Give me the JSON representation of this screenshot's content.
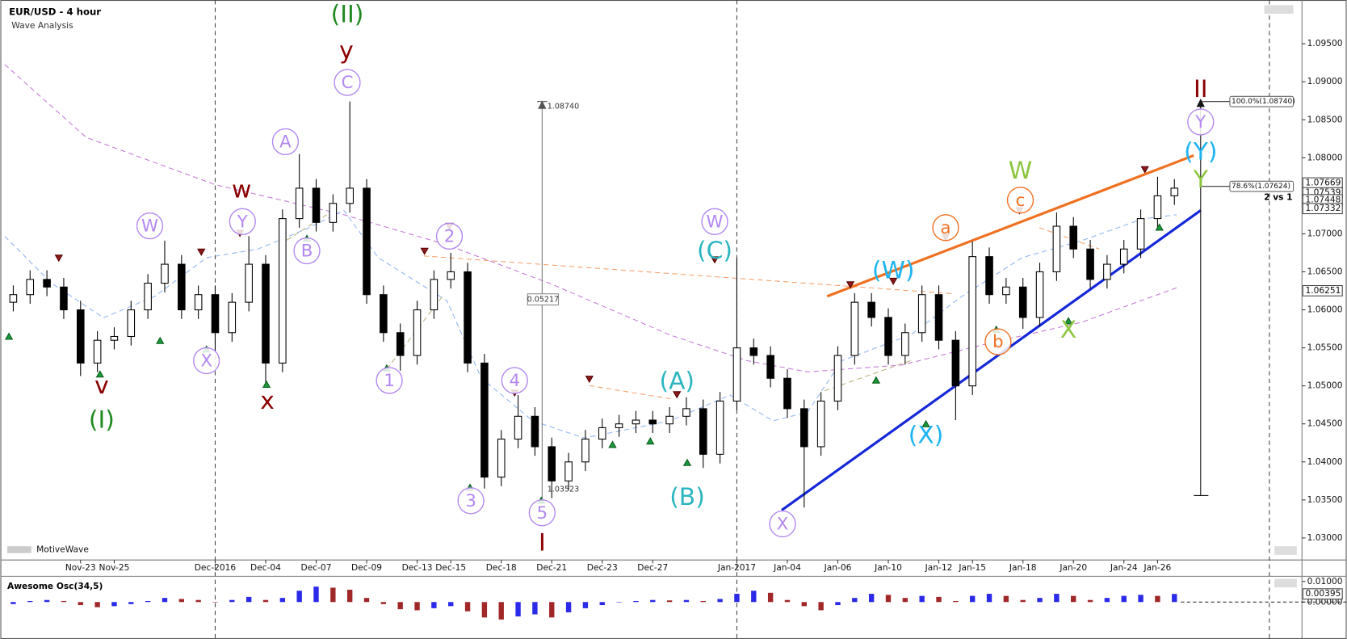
{
  "chart_data": {
    "type": "candlestick",
    "title": "EUR/USD - 4 hour",
    "subtitle": "Wave Analysis",
    "branding": "MotiveWave",
    "categories": [
      null,
      null,
      null,
      null,
      "Nov-23",
      null,
      "Nov-25",
      null,
      null,
      null,
      null,
      null,
      "Dec-2016",
      null,
      null,
      "Dec-04",
      null,
      null,
      "Dec-07",
      null,
      null,
      "Dec-09",
      null,
      null,
      "Dec-13",
      null,
      "Dec-15",
      null,
      null,
      "Dec-18",
      null,
      null,
      "Dec-21",
      null,
      null,
      "Dec-23",
      null,
      null,
      "Dec-27",
      null,
      null,
      null,
      null,
      "Jan-2017",
      null,
      null,
      "Jan-04",
      null,
      null,
      "Jan-06",
      null,
      null,
      "Jan-10",
      null,
      null,
      "Jan-12",
      null,
      "Jan-15",
      null,
      null,
      "Jan-18",
      null,
      null,
      "Jan-20",
      null,
      null,
      "Jan-24",
      null,
      "Jan-26",
      null
    ],
    "month_separators": [
      "Dec-2016",
      "Jan-2017"
    ],
    "open": [
      1.061,
      1.062,
      1.064,
      1.063,
      1.06,
      1.053,
      1.056,
      1.0565,
      1.06,
      1.0635,
      1.066,
      1.06,
      1.062,
      1.057,
      1.061,
      1.066,
      1.053,
      1.072,
      1.076,
      1.0715,
      1.074,
      1.076,
      1.062,
      1.057,
      1.054,
      1.06,
      1.064,
      1.065,
      1.053,
      1.038,
      1.043,
      1.046,
      1.042,
      1.0375,
      1.04,
      1.043,
      1.0445,
      1.045,
      1.0455,
      1.045,
      1.046,
      1.047,
      1.041,
      1.048,
      1.055,
      1.054,
      1.051,
      1.047,
      1.042,
      1.048,
      1.054,
      1.061,
      1.059,
      1.054,
      1.057,
      1.062,
      1.056,
      1.05,
      1.067,
      1.062,
      1.063,
      1.059,
      1.065,
      1.071,
      1.068,
      1.064,
      1.066,
      1.068,
      1.072,
      1.075
    ],
    "high": [
      1.0632,
      1.0652,
      1.0652,
      1.0642,
      1.0612,
      1.0572,
      1.0577,
      1.0612,
      1.0647,
      1.0691,
      1.0672,
      1.0632,
      1.0632,
      1.0622,
      1.0697,
      1.0672,
      1.0732,
      1.0805,
      1.0772,
      1.0752,
      1.0874,
      1.0772,
      1.0632,
      1.0582,
      1.0612,
      1.0652,
      1.0675,
      1.0662,
      1.0542,
      1.0442,
      1.0488,
      1.0472,
      1.0432,
      1.0412,
      1.0442,
      1.0457,
      1.0462,
      1.0467,
      1.0467,
      1.0472,
      1.0485,
      1.0482,
      1.0492,
      1.0668,
      1.0562,
      1.0552,
      1.0522,
      1.0482,
      1.0492,
      1.0552,
      1.0622,
      1.0622,
      1.0602,
      1.0582,
      1.0632,
      1.0632,
      1.0572,
      1.069,
      1.0682,
      1.0642,
      1.0642,
      1.0662,
      1.0728,
      1.0722,
      1.0692,
      1.0672,
      1.0692,
      1.0732,
      1.0775,
      1.0772
    ],
    "low": [
      1.0598,
      1.0608,
      1.0618,
      1.0588,
      1.0513,
      1.0518,
      1.0548,
      1.0553,
      1.0588,
      1.0623,
      1.0588,
      1.0588,
      1.0545,
      1.0558,
      1.0598,
      1.05,
      1.0518,
      1.0708,
      1.0703,
      1.0703,
      1.0728,
      1.0608,
      1.0558,
      1.052,
      1.0528,
      1.0588,
      1.0628,
      1.0518,
      1.0365,
      1.0368,
      1.0418,
      1.0408,
      1.03523,
      1.0363,
      1.0388,
      1.0418,
      1.0433,
      1.0438,
      1.0438,
      1.0438,
      1.0448,
      1.0392,
      1.0398,
      1.0468,
      1.0528,
      1.0498,
      1.0458,
      1.034,
      1.0408,
      1.0468,
      1.0528,
      1.0578,
      1.0528,
      1.0528,
      1.0558,
      1.0548,
      1.0455,
      1.0488,
      1.0608,
      1.0608,
      1.0575,
      1.0578,
      1.0638,
      1.0668,
      1.0628,
      1.0628,
      1.0648,
      1.0668,
      1.0708,
      1.0738
    ],
    "close": [
      1.062,
      1.064,
      1.063,
      1.06,
      1.053,
      1.056,
      1.0565,
      1.06,
      1.0635,
      1.066,
      1.06,
      1.062,
      1.057,
      1.061,
      1.066,
      1.053,
      1.072,
      1.076,
      1.0715,
      1.074,
      1.076,
      1.062,
      1.057,
      1.054,
      1.06,
      1.064,
      1.065,
      1.053,
      1.038,
      1.043,
      1.046,
      1.042,
      1.0375,
      1.04,
      1.043,
      1.0445,
      1.045,
      1.0455,
      1.045,
      1.046,
      1.047,
      1.041,
      1.048,
      1.055,
      1.054,
      1.051,
      1.047,
      1.042,
      1.048,
      1.054,
      1.061,
      1.059,
      1.054,
      1.057,
      1.062,
      1.056,
      1.05,
      1.067,
      1.062,
      1.063,
      1.059,
      1.065,
      1.071,
      1.068,
      1.064,
      1.066,
      1.068,
      1.072,
      1.075,
      1.076
    ],
    "up_color": "#ffffff",
    "down_color": "#000000",
    "ylim": [
      1.0271,
      1.1003
    ],
    "yticks": [
      {
        "value": 1.03,
        "label": "1.03000"
      },
      {
        "value": 1.035,
        "label": "1.03500"
      },
      {
        "value": 1.04,
        "label": "1.04000"
      },
      {
        "value": 1.045,
        "label": "1.04500"
      },
      {
        "value": 1.05,
        "label": "1.05000"
      },
      {
        "value": 1.055,
        "label": "1.05500"
      },
      {
        "value": 1.06,
        "label": "1.06000"
      },
      {
        "value": 1.065,
        "label": "1.06500"
      },
      {
        "value": 1.07,
        "label": "1.07000"
      },
      {
        "value": 1.075,
        "label": "1.07500"
      },
      {
        "value": 1.08,
        "label": "1.08000"
      },
      {
        "value": 1.085,
        "label": "1.08500"
      },
      {
        "value": 1.09,
        "label": "1.09000"
      },
      {
        "value": 1.095,
        "label": "1.09500"
      }
    ],
    "price_markers": [
      {
        "value": 1.07669,
        "label": "1.07669"
      },
      {
        "value": 1.07539,
        "label": "1.07539"
      },
      {
        "value": 1.07448,
        "label": "1.07448"
      },
      {
        "value": 1.07332,
        "label": "1.07332"
      },
      {
        "value": 1.06251,
        "label": "1.06251"
      }
    ],
    "fib_levels": [
      {
        "value": 1.0874,
        "label": "100.0%(1.08740)"
      },
      {
        "value": 1.07624,
        "label": "78.6%(1.07624)"
      }
    ],
    "ratio_note": "2 vs 1",
    "measure": {
      "top": {
        "value": 1.0874,
        "label": "1.08740"
      },
      "bottom": {
        "value": 1.03523,
        "label": "1.03523"
      },
      "range": 0.05217
    },
    "annotations": [
      {
        "text": "(II)",
        "color": "#1f8a1f",
        "circled": false
      },
      {
        "text": "y",
        "color": "#8b0000",
        "circled": false
      },
      {
        "text": "C",
        "color": "#b388f0",
        "circled": true
      },
      {
        "text": "A",
        "color": "#b388f0",
        "circled": true
      },
      {
        "text": "w",
        "color": "#8b0000",
        "circled": false
      },
      {
        "text": "W",
        "color": "#b388f0",
        "circled": true
      },
      {
        "text": "Y",
        "color": "#b388f0",
        "circled": true
      },
      {
        "text": "B",
        "color": "#b388f0",
        "circled": true
      },
      {
        "text": "X",
        "color": "#b388f0",
        "circled": true
      },
      {
        "text": "v",
        "color": "#8b0000",
        "circled": false
      },
      {
        "text": "(I)",
        "color": "#1f8a1f",
        "circled": false
      },
      {
        "text": "x",
        "color": "#8b0000",
        "circled": false
      },
      {
        "text": "2",
        "color": "#b388f0",
        "circled": true
      },
      {
        "text": "1",
        "color": "#b388f0",
        "circled": true
      },
      {
        "text": "4",
        "color": "#b388f0",
        "circled": true
      },
      {
        "text": "3",
        "color": "#b388f0",
        "circled": true
      },
      {
        "text": "5",
        "color": "#b388f0",
        "circled": true
      },
      {
        "text": "I",
        "color": "#8b0000",
        "circled": false
      },
      {
        "text": "W",
        "color": "#b388f0",
        "circled": true
      },
      {
        "text": "(C)",
        "color": "#2ab5c0",
        "circled": false
      },
      {
        "text": "(A)",
        "color": "#2ab5c0",
        "circled": false
      },
      {
        "text": "(B)",
        "color": "#2ab5c0",
        "circled": false
      },
      {
        "text": "X",
        "color": "#b388f0",
        "circled": true
      },
      {
        "text": "(W)",
        "color": "#1eb4f0",
        "circled": false
      },
      {
        "text": "(X)",
        "color": "#1eb4f0",
        "circled": false
      },
      {
        "text": "a",
        "color": "#f07020",
        "circled": true
      },
      {
        "text": "b",
        "color": "#f07020",
        "circled": true
      },
      {
        "text": "c",
        "color": "#f07020",
        "circled": true
      },
      {
        "text": "W",
        "color": "#8cc63f",
        "circled": false
      },
      {
        "text": "X",
        "color": "#8cc63f",
        "circled": false
      },
      {
        "text": "II",
        "color": "#8b0000",
        "circled": false
      },
      {
        "text": "Y",
        "color": "#b388f0",
        "circled": true
      },
      {
        "text": "(Y)",
        "color": "#1eb4f0",
        "circled": false
      },
      {
        "text": "Y",
        "color": "#8cc63f",
        "circled": false
      }
    ],
    "oscillator": {
      "title": "Awesome Osc(34,5)",
      "up_color": "#2a2ae8",
      "down_color": "#a02828",
      "ylim": [
        -0.0163,
        0.0121
      ],
      "yticks": [
        {
          "value": 0.01,
          "label": "0.01000"
        },
        {
          "value": 0,
          "label": "0.00000"
        }
      ],
      "values": [
        -0.001,
        0.0005,
        0.001,
        0.0005,
        -0.0015,
        -0.0025,
        -0.002,
        -0.001,
        0.0005,
        0.002,
        0.0015,
        0.001,
        0.0,
        0.001,
        0.0025,
        0.001,
        0.002,
        0.0055,
        0.0075,
        0.007,
        0.006,
        0.002,
        -0.001,
        -0.0035,
        -0.004,
        -0.003,
        -0.002,
        -0.0045,
        -0.0075,
        -0.0085,
        -0.007,
        -0.006,
        -0.0075,
        -0.005,
        -0.003,
        -0.0015,
        0.0,
        0.0005,
        0.001,
        0.0008,
        0.001,
        0.0005,
        0.0015,
        0.004,
        0.0055,
        0.0045,
        0.001,
        -0.002,
        -0.004,
        -0.0015,
        0.002,
        0.004,
        0.0035,
        0.002,
        0.003,
        0.0025,
        0.0005,
        0.003,
        0.004,
        0.003,
        0.001,
        0.002,
        0.004,
        0.003,
        0.001,
        0.002,
        0.003,
        0.0035,
        0.003,
        0.00395
      ]
    }
  }
}
